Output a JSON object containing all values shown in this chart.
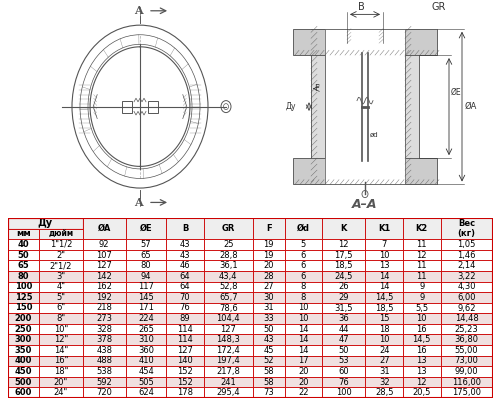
{
  "bg_color": "#ffffff",
  "table_border_color": "#cc0000",
  "col_labels": [
    "ØA",
    "ØE",
    "B",
    "GR",
    "F",
    "Ød",
    "K",
    "K1",
    "K2",
    "Вес\n(кг)"
  ],
  "rows": [
    [
      "40",
      "1\"1/2",
      "92",
      "57",
      "43",
      "25",
      "19",
      "5",
      "12",
      "7",
      "11",
      "1,05"
    ],
    [
      "50",
      "2\"",
      "107",
      "65",
      "43",
      "28,8",
      "19",
      "6",
      "17,5",
      "10",
      "12",
      "1,46"
    ],
    [
      "65",
      "2\"1/2",
      "127",
      "80",
      "46",
      "36,1",
      "20",
      "6",
      "18,5",
      "13",
      "11",
      "2,14"
    ],
    [
      "80",
      "3\"",
      "142",
      "94",
      "64",
      "43,4",
      "28",
      "6",
      "24,5",
      "14",
      "11",
      "3,22"
    ],
    [
      "100",
      "4\"",
      "162",
      "117",
      "64",
      "52,8",
      "27",
      "8",
      "26",
      "14",
      "9",
      "4,30"
    ],
    [
      "125",
      "5\"",
      "192",
      "145",
      "70",
      "65,7",
      "30",
      "8",
      "29",
      "14,5",
      "9",
      "6,00"
    ],
    [
      "150",
      "6\"",
      "218",
      "171",
      "76",
      "78,6",
      "31",
      "10",
      "31,5",
      "18,5",
      "5,5",
      "9,62"
    ],
    [
      "200",
      "8\"",
      "273",
      "224",
      "89",
      "104,4",
      "33",
      "10",
      "36",
      "15",
      "10",
      "14,48"
    ],
    [
      "250",
      "10\"",
      "328",
      "265",
      "114",
      "127",
      "50",
      "14",
      "44",
      "18",
      "16",
      "25,23"
    ],
    [
      "300",
      "12\"",
      "378",
      "310",
      "114",
      "148,3",
      "43",
      "14",
      "47",
      "10",
      "14,5",
      "36,80"
    ],
    [
      "350",
      "14\"",
      "438",
      "360",
      "127",
      "172,4",
      "45",
      "14",
      "50",
      "24",
      "16",
      "55,00"
    ],
    [
      "400",
      "16\"",
      "488",
      "410",
      "140",
      "197,4",
      "52",
      "17",
      "53",
      "27",
      "13",
      "73,00"
    ],
    [
      "450",
      "18\"",
      "538",
      "454",
      "152",
      "217,8",
      "58",
      "20",
      "60",
      "31",
      "13",
      "99,00"
    ],
    [
      "500",
      "20\"",
      "592",
      "505",
      "152",
      "241",
      "58",
      "20",
      "76",
      "32",
      "12",
      "116,00"
    ],
    [
      "600",
      "24\"",
      "720",
      "624",
      "178",
      "295,4",
      "73",
      "22",
      "100",
      "28,5",
      "20,5",
      "175,00"
    ]
  ],
  "highlighted_row_indices": [
    3,
    5,
    7,
    9,
    11,
    13
  ],
  "draw_color": "#555555",
  "hatch_color": "#888888",
  "hdr_bg": "#eeeeee",
  "alt_bg": "#f0e0e0",
  "white_bg": "#ffffff"
}
